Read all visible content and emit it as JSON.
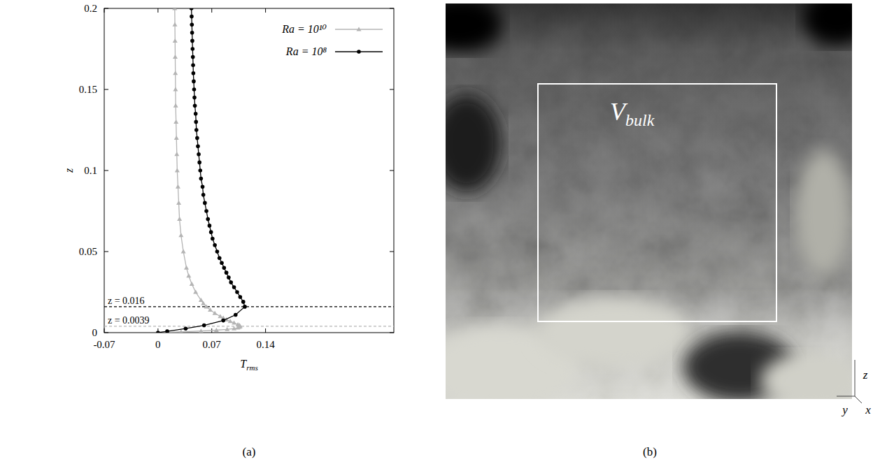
{
  "chart_data": {
    "type": "line",
    "panel_label": "(a)",
    "x_label": {
      "text": "T",
      "subscript": "rms"
    },
    "y_label": "z",
    "xlim": [
      -0.07,
      0.307
    ],
    "ylim": [
      0,
      0.2
    ],
    "xticks": [
      -0.07,
      0,
      0.07,
      0.14
    ],
    "yticks": [
      0,
      0.05,
      0.1,
      0.15,
      0.2
    ],
    "legend": "upper right",
    "grid": false,
    "annotations": [
      {
        "text": "z = 0.016",
        "value": 0.016,
        "color": "#000000",
        "line_style": "dashed"
      },
      {
        "text": "z = 0.0039",
        "value": 0.0039,
        "color": "#b4b4b4",
        "line_style": "dashed"
      }
    ],
    "series": [
      {
        "name": "Ra = 10¹⁰",
        "color": "#b4b4b4",
        "marker": "triangle",
        "line_style": "solid",
        "x": [
          0,
          0.03,
          0.056,
          0.076,
          0.09,
          0.099,
          0.104,
          0.106,
          0.107,
          0.106,
          0.104,
          0.099,
          0.094,
          0.089,
          0.085,
          0.081,
          0.074,
          0.068,
          0.063,
          0.059,
          0.056,
          0.049,
          0.044,
          0.04,
          0.037,
          0.033,
          0.03,
          0.028,
          0.027,
          0.026,
          0.025,
          0.0245,
          0.024,
          0.0235,
          0.023,
          0.0228,
          0.0226,
          0.0224,
          0.0222,
          0.022,
          0.0218
        ],
        "values": [
          0,
          0.0005,
          0.001,
          0.0015,
          0.002,
          0.0025,
          0.003,
          0.0035,
          0.0039,
          0.0045,
          0.005,
          0.006,
          0.007,
          0.008,
          0.009,
          0.01,
          0.012,
          0.014,
          0.016,
          0.018,
          0.02,
          0.025,
          0.03,
          0.035,
          0.04,
          0.05,
          0.06,
          0.07,
          0.08,
          0.09,
          0.1,
          0.11,
          0.12,
          0.13,
          0.14,
          0.15,
          0.16,
          0.17,
          0.18,
          0.19,
          0.2
        ]
      },
      {
        "name": "Ra = 10⁸",
        "color": "#000000",
        "marker": "circle",
        "line_style": "solid",
        "x": [
          0,
          0.012,
          0.036,
          0.06,
          0.085,
          0.101,
          0.113,
          0.111,
          0.107,
          0.103,
          0.099,
          0.095,
          0.092,
          0.089,
          0.086,
          0.083,
          0.08,
          0.077,
          0.074,
          0.071,
          0.069,
          0.067,
          0.065,
          0.063,
          0.061,
          0.059,
          0.058,
          0.056,
          0.055,
          0.054,
          0.053,
          0.052,
          0.051,
          0.05,
          0.0495,
          0.049,
          0.048,
          0.0475,
          0.047,
          0.0465,
          0.046,
          0.0457,
          0.0454,
          0.045,
          0.0447,
          0.0444,
          0.0441,
          0.0438,
          0.0435
        ],
        "values": [
          0,
          0.0008,
          0.0025,
          0.0045,
          0.0075,
          0.011,
          0.016,
          0.019,
          0.022,
          0.025,
          0.028,
          0.031,
          0.034,
          0.037,
          0.04,
          0.043,
          0.046,
          0.05,
          0.054,
          0.058,
          0.062,
          0.066,
          0.07,
          0.075,
          0.08,
          0.085,
          0.09,
          0.095,
          0.1,
          0.105,
          0.11,
          0.115,
          0.12,
          0.125,
          0.13,
          0.135,
          0.14,
          0.145,
          0.15,
          0.155,
          0.16,
          0.165,
          0.17,
          0.175,
          0.18,
          0.185,
          0.19,
          0.195,
          0.2
        ]
      }
    ]
  },
  "image_panel": {
    "panel_label": "(b)",
    "box_label": {
      "text": "V",
      "subscript": "bulk"
    },
    "axis_labels": [
      "z",
      "y",
      "x"
    ]
  }
}
